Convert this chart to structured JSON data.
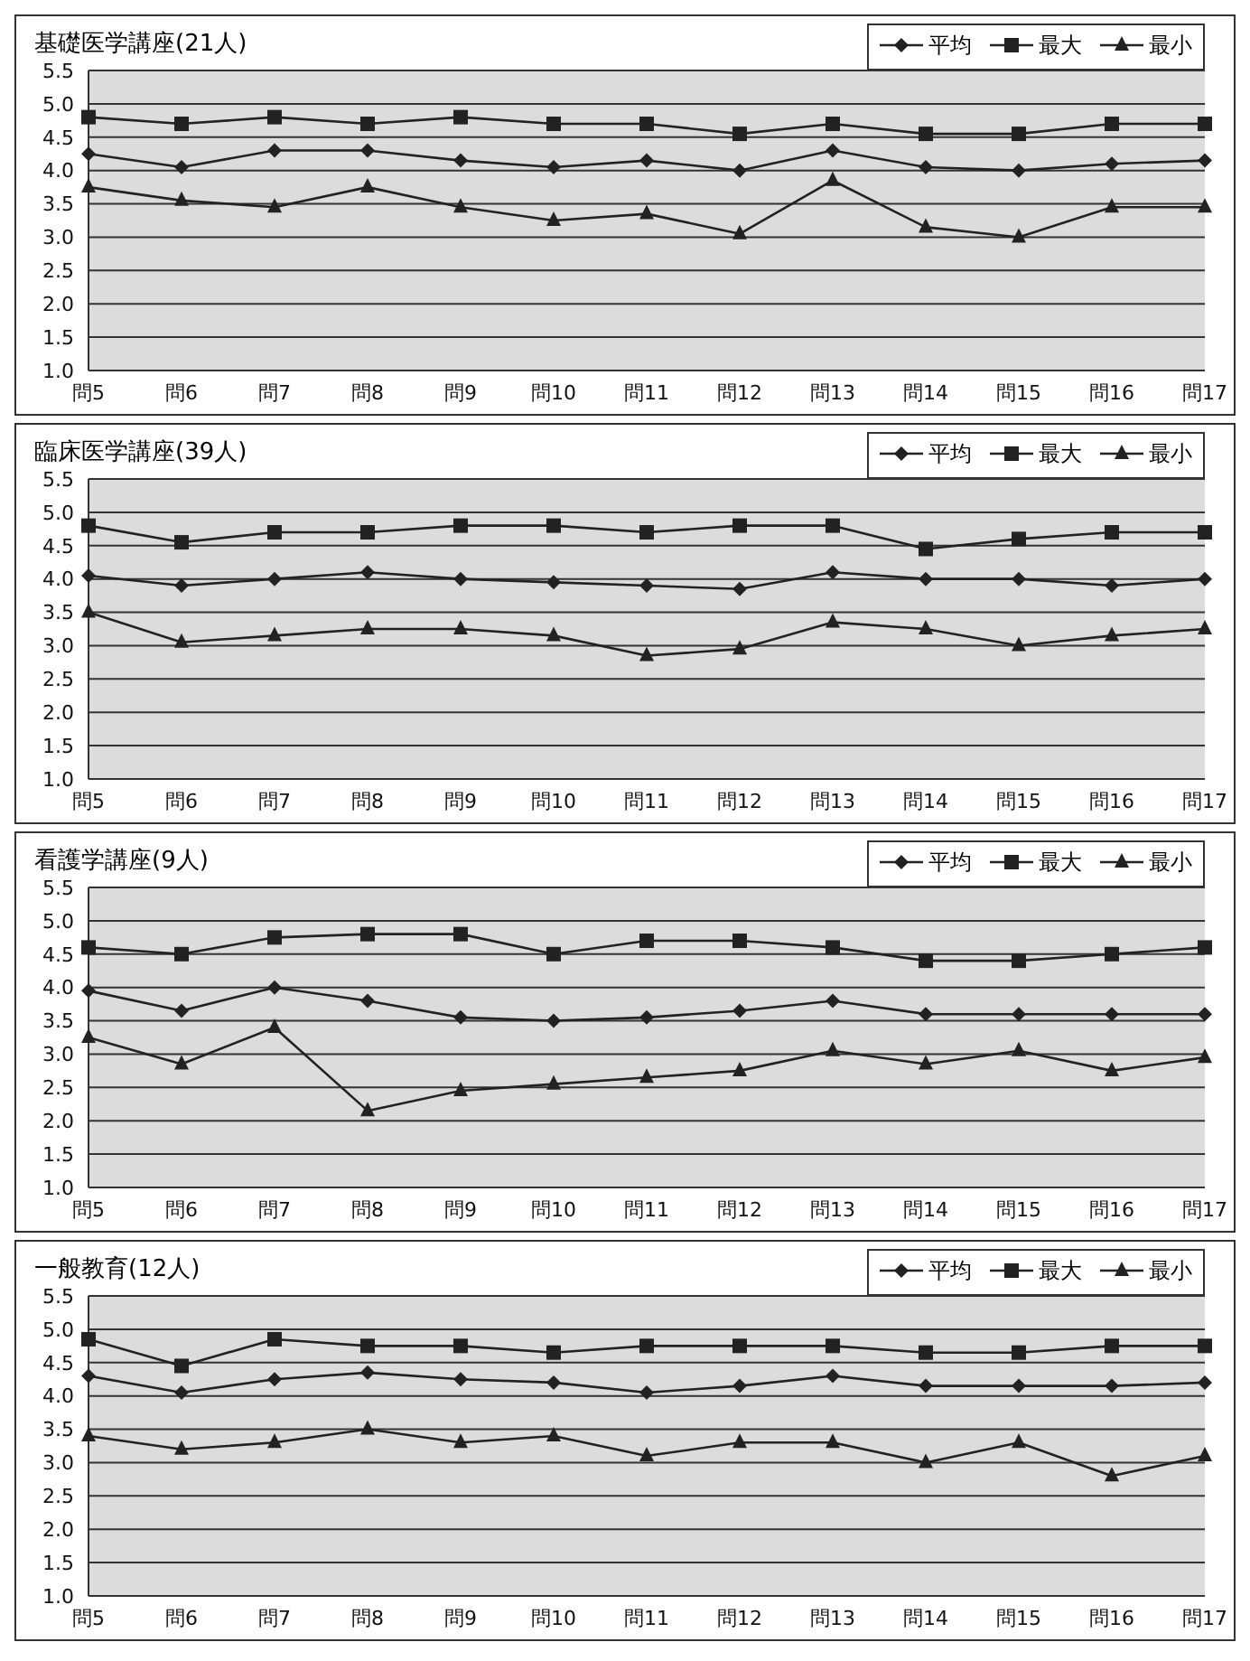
{
  "chart_data": [
    {
      "type": "line",
      "title": "基礎医学講座(21人)",
      "categories": [
        "問5",
        "問6",
        "問7",
        "問8",
        "問9",
        "問10",
        "問11",
        "問12",
        "問13",
        "問14",
        "問15",
        "問16",
        "問17"
      ],
      "series": [
        {
          "name": "平均",
          "color": "#222222",
          "marker": "diamond",
          "values": [
            4.25,
            4.05,
            4.3,
            4.3,
            4.15,
            4.05,
            4.15,
            4.0,
            4.3,
            4.05,
            4.0,
            4.1,
            4.15
          ]
        },
        {
          "name": "最大",
          "color": "#222222",
          "marker": "square",
          "values": [
            4.8,
            4.7,
            4.8,
            4.7,
            4.8,
            4.7,
            4.7,
            4.55,
            4.7,
            4.55,
            4.55,
            4.7,
            4.7
          ]
        },
        {
          "name": "最小",
          "color": "#222222",
          "marker": "triangle",
          "values": [
            3.75,
            3.55,
            3.45,
            3.75,
            3.45,
            3.25,
            3.35,
            3.05,
            3.85,
            3.15,
            3.0,
            3.45,
            3.45
          ]
        }
      ],
      "ylim": [
        1.0,
        5.5
      ],
      "yticks": [
        {
          "value": 1,
          "label": "1.0"
        },
        1.5,
        {
          "value": 2,
          "label": "2.0"
        },
        2.5,
        {
          "value": 3,
          "label": "3.0"
        },
        3.5,
        {
          "value": 4,
          "label": "4.0"
        },
        4.5,
        {
          "value": 5,
          "label": "5.0"
        },
        5.5
      ],
      "grid": "y",
      "legend": "top right"
    },
    {
      "type": "line",
      "title": "臨床医学講座(39人)",
      "categories": [
        "問5",
        "問6",
        "問7",
        "問8",
        "問9",
        "問10",
        "問11",
        "問12",
        "問13",
        "問14",
        "問15",
        "問16",
        "問17"
      ],
      "series": [
        {
          "name": "平均",
          "color": "#222222",
          "marker": "diamond",
          "values": [
            4.05,
            3.9,
            4.0,
            4.1,
            4.0,
            3.95,
            3.9,
            3.85,
            4.1,
            4.0,
            4.0,
            3.9,
            4.0
          ]
        },
        {
          "name": "最大",
          "color": "#222222",
          "marker": "square",
          "values": [
            4.8,
            4.55,
            4.7,
            4.7,
            4.8,
            4.8,
            4.7,
            4.8,
            4.8,
            4.45,
            4.6,
            4.7,
            4.7
          ]
        },
        {
          "name": "最小",
          "color": "#222222",
          "marker": "triangle",
          "values": [
            3.5,
            3.05,
            3.15,
            3.25,
            3.25,
            3.15,
            2.85,
            2.95,
            3.35,
            3.25,
            3.0,
            3.15,
            3.25
          ]
        }
      ],
      "ylim": [
        1.0,
        5.5
      ],
      "yticks": [
        {
          "value": 1,
          "label": "1.0"
        },
        1.5,
        {
          "value": 2,
          "label": "2.0"
        },
        2.5,
        {
          "value": 3,
          "label": "3.0"
        },
        3.5,
        {
          "value": 4,
          "label": "4.0"
        },
        4.5,
        {
          "value": 5,
          "label": "5.0"
        },
        5.5
      ],
      "grid": "y",
      "legend": "top right"
    },
    {
      "type": "line",
      "title": "看護学講座(9人)",
      "categories": [
        "問5",
        "問6",
        "問7",
        "問8",
        "問9",
        "問10",
        "問11",
        "問12",
        "問13",
        "問14",
        "問15",
        "問16",
        "問17"
      ],
      "series": [
        {
          "name": "平均",
          "color": "#222222",
          "marker": "diamond",
          "values": [
            3.95,
            3.65,
            4.0,
            3.8,
            3.55,
            3.5,
            3.55,
            3.65,
            3.8,
            3.6,
            3.6,
            3.6,
            3.6
          ]
        },
        {
          "name": "最大",
          "color": "#222222",
          "marker": "square",
          "values": [
            4.6,
            4.5,
            4.75,
            4.8,
            4.8,
            4.5,
            4.7,
            4.7,
            4.6,
            4.4,
            4.4,
            4.5,
            4.6
          ]
        },
        {
          "name": "最小",
          "color": "#222222",
          "marker": "triangle",
          "values": [
            3.25,
            2.85,
            3.4,
            2.15,
            2.45,
            2.55,
            2.65,
            2.75,
            3.05,
            2.85,
            3.05,
            2.75,
            2.95
          ]
        }
      ],
      "ylim": [
        1.0,
        5.5
      ],
      "yticks": [
        {
          "value": 1,
          "label": "1.0"
        },
        1.5,
        {
          "value": 2,
          "label": "2.0"
        },
        2.5,
        {
          "value": 3,
          "label": "3.0"
        },
        3.5,
        {
          "value": 4,
          "label": "4.0"
        },
        4.5,
        {
          "value": 5,
          "label": "5.0"
        },
        5.5
      ],
      "grid": "y",
      "legend": "top right"
    },
    {
      "type": "line",
      "title": "一般教育(12人)",
      "categories": [
        "問5",
        "問6",
        "問7",
        "問8",
        "問9",
        "問10",
        "問11",
        "問12",
        "問13",
        "問14",
        "問15",
        "問16",
        "問17"
      ],
      "series": [
        {
          "name": "平均",
          "color": "#222222",
          "marker": "diamond",
          "values": [
            4.3,
            4.05,
            4.25,
            4.35,
            4.25,
            4.2,
            4.05,
            4.15,
            4.3,
            4.15,
            4.15,
            4.15,
            4.2
          ]
        },
        {
          "name": "最大",
          "color": "#222222",
          "marker": "square",
          "values": [
            4.85,
            4.45,
            4.85,
            4.75,
            4.75,
            4.65,
            4.75,
            4.75,
            4.75,
            4.65,
            4.65,
            4.75,
            4.75
          ]
        },
        {
          "name": "最小",
          "color": "#222222",
          "marker": "triangle",
          "values": [
            3.4,
            3.2,
            3.3,
            3.5,
            3.3,
            3.4,
            3.1,
            3.3,
            3.3,
            3.0,
            3.3,
            2.8,
            3.1
          ]
        }
      ],
      "ylim": [
        1.0,
        5.5
      ],
      "yticks": [
        {
          "value": 1,
          "label": "1.0"
        },
        1.5,
        {
          "value": 2,
          "label": "2.0"
        },
        2.5,
        {
          "value": 3,
          "label": "3.0"
        },
        3.5,
        {
          "value": 4,
          "label": "4.0"
        },
        4.5,
        {
          "value": 5,
          "label": "5.0"
        },
        5.5
      ],
      "grid": "y",
      "legend": "top right"
    }
  ]
}
